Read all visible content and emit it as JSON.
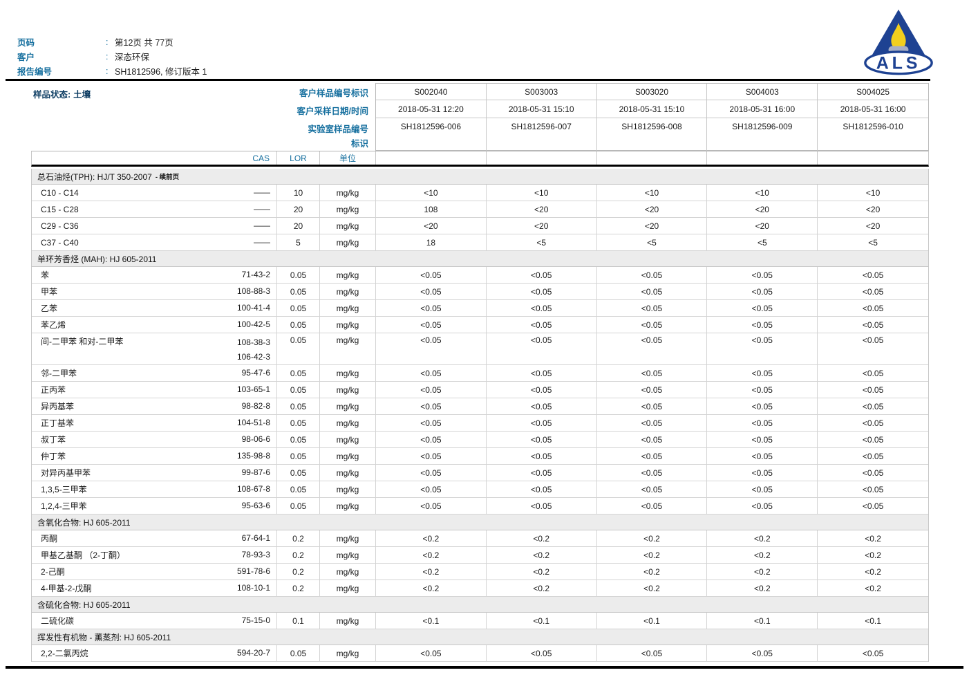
{
  "colors": {
    "label_blue": "#17709f",
    "state_navy": "#0c3c62",
    "brand_navy": "#1e4292",
    "flame_yellow": "#f2cf1d",
    "candle_grey": "#a6aec4"
  },
  "page_header": {
    "colon": ":",
    "fields": [
      {
        "label": "页码",
        "value": "第12页 共 77页"
      },
      {
        "label": "客户",
        "value": "深态环保"
      },
      {
        "label": "报告编号",
        "value": "SH1812596, 修订版本 1"
      }
    ]
  },
  "logo": {
    "text": "ALS"
  },
  "sample_header": {
    "sample_state_label": "样品状态:",
    "sample_state_value": "土壤",
    "row_labels": [
      "客户样品编号标识",
      "客户采样日期/时间",
      "实验室样品编号",
      "标识"
    ],
    "column_headers": {
      "cas": "CAS",
      "lor": "LOR",
      "unit": "单位"
    },
    "columns": [
      {
        "id": "S002040",
        "datetime": "2018-05-31 12:20",
        "lab_id": "SH1812596-006"
      },
      {
        "id": "S003003",
        "datetime": "2018-05-31 15:10",
        "lab_id": "SH1812596-007"
      },
      {
        "id": "S003020",
        "datetime": "2018-05-31 15:10",
        "lab_id": "SH1812596-008"
      },
      {
        "id": "S004003",
        "datetime": "2018-05-31 16:00",
        "lab_id": "SH1812596-009"
      },
      {
        "id": "S004025",
        "datetime": "2018-05-31 16:00",
        "lab_id": "SH1812596-010"
      }
    ]
  },
  "sections": [
    {
      "title": "总石油烃(TPH): HJ/T 350-2007",
      "title_suffix": "- 续前页",
      "rows": [
        {
          "name": "C10 - C14",
          "cas": "——",
          "lor": "10",
          "unit": "mg/kg",
          "values": [
            "<10",
            "<10",
            "<10",
            "<10",
            "<10"
          ]
        },
        {
          "name": "C15 - C28",
          "cas": "——",
          "lor": "20",
          "unit": "mg/kg",
          "values": [
            "108",
            "<20",
            "<20",
            "<20",
            "<20"
          ]
        },
        {
          "name": "C29 - C36",
          "cas": "——",
          "lor": "20",
          "unit": "mg/kg",
          "values": [
            "<20",
            "<20",
            "<20",
            "<20",
            "<20"
          ]
        },
        {
          "name": "C37 - C40",
          "cas": "——",
          "lor": "5",
          "unit": "mg/kg",
          "values": [
            "18",
            "<5",
            "<5",
            "<5",
            "<5"
          ]
        }
      ]
    },
    {
      "title": "单环芳香烃 (MAH): HJ 605-2011",
      "title_suffix": "",
      "rows": [
        {
          "name": "苯",
          "cas": "71-43-2",
          "lor": "0.05",
          "unit": "mg/kg",
          "values": [
            "<0.05",
            "<0.05",
            "<0.05",
            "<0.05",
            "<0.05"
          ]
        },
        {
          "name": "甲苯",
          "cas": "108-88-3",
          "lor": "0.05",
          "unit": "mg/kg",
          "values": [
            "<0.05",
            "<0.05",
            "<0.05",
            "<0.05",
            "<0.05"
          ]
        },
        {
          "name": "乙苯",
          "cas": "100-41-4",
          "lor": "0.05",
          "unit": "mg/kg",
          "values": [
            "<0.05",
            "<0.05",
            "<0.05",
            "<0.05",
            "<0.05"
          ]
        },
        {
          "name": "苯乙烯",
          "cas": "100-42-5",
          "lor": "0.05",
          "unit": "mg/kg",
          "values": [
            "<0.05",
            "<0.05",
            "<0.05",
            "<0.05",
            "<0.05"
          ]
        },
        {
          "name": "间-二甲苯 和对-二甲苯",
          "cas": "108-38-3",
          "cas2": "106-42-3",
          "lor": "0.05",
          "unit": "mg/kg",
          "values": [
            "<0.05",
            "<0.05",
            "<0.05",
            "<0.05",
            "<0.05"
          ]
        },
        {
          "name": "邻-二甲苯",
          "cas": "95-47-6",
          "lor": "0.05",
          "unit": "mg/kg",
          "values": [
            "<0.05",
            "<0.05",
            "<0.05",
            "<0.05",
            "<0.05"
          ]
        },
        {
          "name": "正丙苯",
          "cas": "103-65-1",
          "lor": "0.05",
          "unit": "mg/kg",
          "values": [
            "<0.05",
            "<0.05",
            "<0.05",
            "<0.05",
            "<0.05"
          ]
        },
        {
          "name": "异丙基苯",
          "cas": "98-82-8",
          "lor": "0.05",
          "unit": "mg/kg",
          "values": [
            "<0.05",
            "<0.05",
            "<0.05",
            "<0.05",
            "<0.05"
          ]
        },
        {
          "name": "正丁基苯",
          "cas": "104-51-8",
          "lor": "0.05",
          "unit": "mg/kg",
          "values": [
            "<0.05",
            "<0.05",
            "<0.05",
            "<0.05",
            "<0.05"
          ]
        },
        {
          "name": "叔丁苯",
          "cas": "98-06-6",
          "lor": "0.05",
          "unit": "mg/kg",
          "values": [
            "<0.05",
            "<0.05",
            "<0.05",
            "<0.05",
            "<0.05"
          ]
        },
        {
          "name": "仲丁苯",
          "cas": "135-98-8",
          "lor": "0.05",
          "unit": "mg/kg",
          "values": [
            "<0.05",
            "<0.05",
            "<0.05",
            "<0.05",
            "<0.05"
          ]
        },
        {
          "name": "对异丙基甲苯",
          "cas": "99-87-6",
          "lor": "0.05",
          "unit": "mg/kg",
          "values": [
            "<0.05",
            "<0.05",
            "<0.05",
            "<0.05",
            "<0.05"
          ]
        },
        {
          "name": "1,3,5-三甲苯",
          "cas": "108-67-8",
          "lor": "0.05",
          "unit": "mg/kg",
          "values": [
            "<0.05",
            "<0.05",
            "<0.05",
            "<0.05",
            "<0.05"
          ]
        },
        {
          "name": "1,2,4-三甲苯",
          "cas": "95-63-6",
          "lor": "0.05",
          "unit": "mg/kg",
          "values": [
            "<0.05",
            "<0.05",
            "<0.05",
            "<0.05",
            "<0.05"
          ]
        }
      ]
    },
    {
      "title": "含氧化合物: HJ 605-2011",
      "title_suffix": "",
      "rows": [
        {
          "name": "丙酮",
          "cas": "67-64-1",
          "lor": "0.2",
          "unit": "mg/kg",
          "values": [
            "<0.2",
            "<0.2",
            "<0.2",
            "<0.2",
            "<0.2"
          ]
        },
        {
          "name": "甲基乙基酮 （2-丁酮）",
          "cas": "78-93-3",
          "lor": "0.2",
          "unit": "mg/kg",
          "values": [
            "<0.2",
            "<0.2",
            "<0.2",
            "<0.2",
            "<0.2"
          ]
        },
        {
          "name": "2-己酮",
          "cas": "591-78-6",
          "lor": "0.2",
          "unit": "mg/kg",
          "values": [
            "<0.2",
            "<0.2",
            "<0.2",
            "<0.2",
            "<0.2"
          ]
        },
        {
          "name": "4-甲基-2-戊酮",
          "cas": "108-10-1",
          "lor": "0.2",
          "unit": "mg/kg",
          "values": [
            "<0.2",
            "<0.2",
            "<0.2",
            "<0.2",
            "<0.2"
          ]
        }
      ]
    },
    {
      "title": "含硫化合物: HJ 605-2011",
      "title_suffix": "",
      "rows": [
        {
          "name": "二硫化碳",
          "cas": "75-15-0",
          "lor": "0.1",
          "unit": "mg/kg",
          "values": [
            "<0.1",
            "<0.1",
            "<0.1",
            "<0.1",
            "<0.1"
          ]
        }
      ]
    },
    {
      "title": "挥发性有机物 - 薰蒸剂: HJ 605-2011",
      "title_suffix": "",
      "rows": [
        {
          "name": "2,2-二氯丙烷",
          "cas": "594-20-7",
          "lor": "0.05",
          "unit": "mg/kg",
          "values": [
            "<0.05",
            "<0.05",
            "<0.05",
            "<0.05",
            "<0.05"
          ]
        }
      ]
    }
  ]
}
